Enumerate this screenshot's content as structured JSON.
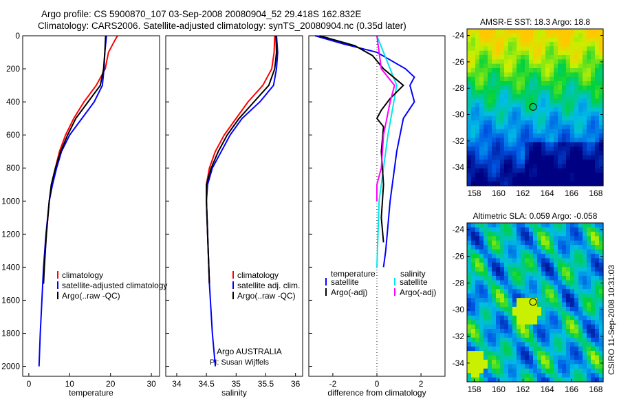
{
  "title_line1": "Argo profile: CS 5900870_107 03-Sep-2008 20080904_52 29.418S 162.832E",
  "title_line2": "Climatology: CARS2006. Satellite-adjusted climatology: synTS_20080904.nc (0.35d later)",
  "side_label": "CSIRO 11-Sep-2008 10:31:03",
  "credit_line1": "Argo AUSTRALIA",
  "credit_line2": "PI: Susan Wijffels",
  "chart_data": [
    {
      "type": "line",
      "xlabel": "temperature",
      "ylabel": "",
      "xlim": [
        -1.5,
        32
      ],
      "ylim": [
        0,
        2060
      ],
      "yreversed": true,
      "xticks": [
        "0",
        "10",
        "20",
        "30"
      ],
      "yticks": [
        "0",
        "200",
        "400",
        "600",
        "800",
        "1000",
        "1200",
        "1400",
        "1600",
        "1800",
        "2000"
      ],
      "legend": [
        "climatology",
        "satellite-adjusted climatology",
        "Argo(..raw -QC)"
      ],
      "series": [
        {
          "name": "climatology",
          "color": "#ff0000",
          "depth": [
            0,
            30,
            100,
            200,
            300,
            400,
            500,
            600,
            700,
            800,
            900,
            1000,
            1200,
            1400,
            1500
          ],
          "values": [
            21.7,
            21,
            19.5,
            18.7,
            16.5,
            13.5,
            11,
            9,
            7.5,
            6.5,
            5.6,
            5,
            4.3,
            3.7,
            3.5
          ]
        },
        {
          "name": "satellite-adjusted climatology",
          "color": "#0000ff",
          "depth": [
            0,
            100,
            200,
            300,
            400,
            500,
            600,
            700,
            800,
            900,
            1000,
            1200,
            1400,
            1600,
            1800,
            2000
          ],
          "values": [
            19,
            18.6,
            18.4,
            18,
            16,
            13,
            10,
            8,
            6.8,
            5.8,
            5,
            4.2,
            3.6,
            3.2,
            2.8,
            2.5
          ]
        },
        {
          "name": "Argo(..raw -QC)",
          "color": "#000000",
          "depth": [
            0,
            100,
            200,
            300,
            400,
            500,
            600,
            700,
            800,
            900,
            1000,
            1200,
            1400,
            1500
          ],
          "values": [
            18.8,
            18.6,
            18.3,
            17.5,
            14.5,
            11.5,
            9.5,
            7.8,
            6.5,
            5.5,
            5,
            4.3,
            3.8,
            3.6
          ]
        }
      ]
    },
    {
      "type": "line",
      "xlabel": "salinity",
      "ylabel": "",
      "xlim": [
        33.815,
        36.12
      ],
      "ylim": [
        0,
        2060
      ],
      "yreversed": true,
      "xticks": [
        "34",
        "34.5",
        "35",
        "35.5",
        "36"
      ],
      "legend": [
        "climatology",
        "satellite adj. clim.",
        "Argo(..raw -QC)"
      ],
      "series": [
        {
          "name": "climatology",
          "color": "#ff0000",
          "depth": [
            0,
            100,
            200,
            300,
            400,
            500,
            600,
            700,
            800,
            900,
            1000,
            1200,
            1500
          ],
          "values": [
            35.65,
            35.64,
            35.6,
            35.45,
            35.2,
            35.0,
            34.8,
            34.65,
            34.55,
            34.5,
            34.5,
            34.52,
            34.55
          ]
        },
        {
          "name": "satellite adj. clim.",
          "color": "#0000ff",
          "depth": [
            0,
            100,
            200,
            300,
            400,
            500,
            600,
            700,
            800,
            900,
            1000,
            1200,
            1500,
            1800,
            2000
          ],
          "values": [
            35.68,
            35.7,
            35.68,
            35.63,
            35.4,
            35.1,
            34.9,
            34.75,
            34.6,
            34.52,
            34.5,
            34.52,
            34.55,
            34.6,
            34.65
          ]
        },
        {
          "name": "Argo(..raw -QC)",
          "color": "#000000",
          "depth": [
            0,
            100,
            200,
            300,
            400,
            500,
            600,
            700,
            800,
            900,
            1000,
            1200,
            1500
          ],
          "values": [
            35.67,
            35.68,
            35.65,
            35.55,
            35.3,
            35.05,
            34.85,
            34.7,
            34.58,
            34.5,
            34.5,
            34.52,
            34.55
          ]
        }
      ]
    },
    {
      "type": "line",
      "xlabel": "difference from climatology",
      "ylabel": "",
      "xlim": [
        -3.09,
        3.09
      ],
      "ylim": [
        0,
        2060
      ],
      "yreversed": true,
      "xticks": [
        "-2",
        "0",
        "2"
      ],
      "legend_headers": [
        "temperature",
        "salinity"
      ],
      "legend": [
        "satellite",
        "Argo(-adj)",
        "satellite",
        "Argo(-adj)"
      ],
      "series": [
        {
          "name": "temperature satellite",
          "color": "#0000ff",
          "depth": [
            0,
            50,
            100,
            200,
            250,
            300,
            400,
            500,
            700,
            1000,
            1300,
            1400
          ],
          "values": [
            -2.8,
            -1.5,
            0,
            1.3,
            1.7,
            1.5,
            1.7,
            1.2,
            0.9,
            0.6,
            0.4,
            0.3
          ]
        },
        {
          "name": "salinity satellite",
          "color": "#00e5ee",
          "depth": [
            0,
            100,
            200,
            300,
            450,
            600,
            800,
            1000,
            1200,
            1400
          ],
          "values": [
            0,
            0.3,
            0.6,
            0.9,
            0.7,
            0.5,
            0.3,
            0.1,
            0.05,
            0
          ]
        },
        {
          "name": "temperature Argo(-adj)",
          "color": "#000000",
          "depth": [
            0,
            60,
            120,
            200,
            300,
            380,
            450,
            500,
            550,
            700,
            900,
            1100,
            1250
          ],
          "values": [
            -2.6,
            -1,
            -0.2,
            0.3,
            1.2,
            0.6,
            0.2,
            0,
            0.3,
            0.2,
            0.3,
            0.2,
            0.3
          ]
        },
        {
          "name": "salinity Argo(-adj)",
          "color": "#ff00ff",
          "depth": [
            0,
            200,
            300,
            400,
            600,
            800,
            900,
            1000
          ],
          "values": [
            0,
            0.2,
            0.8,
            0.6,
            0.3,
            0.2,
            0,
            0
          ]
        }
      ]
    },
    {
      "type": "heatmap",
      "title": "AMSR-E SST: 18.3 Argo: 18.8",
      "xlim": [
        157.4,
        168.6
      ],
      "ylim": [
        -35.4,
        -23.5
      ],
      "xticks": [
        "158",
        "160",
        "162",
        "164",
        "166",
        "168"
      ],
      "yticks": [
        "-24",
        "-26",
        "-28",
        "-30",
        "-32",
        "-34"
      ],
      "marker": [
        162.832,
        -29.418
      ]
    },
    {
      "type": "heatmap",
      "title": "Altimetric SLA: 0.059 Argo: -0.058",
      "xlim": [
        157.4,
        168.6
      ],
      "ylim": [
        -35.4,
        -23.5
      ],
      "xticks": [
        "158",
        "160",
        "162",
        "164",
        "166",
        "168"
      ],
      "yticks": [
        "-24",
        "-26",
        "-28",
        "-30",
        "-32",
        "-34"
      ],
      "marker": [
        162.832,
        -29.418
      ]
    }
  ]
}
